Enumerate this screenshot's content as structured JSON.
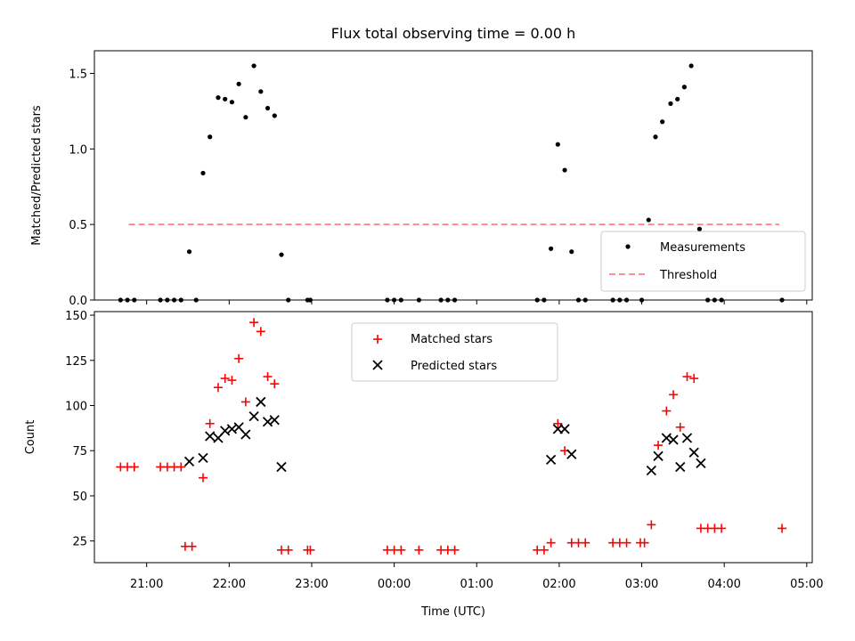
{
  "chart_data": [
    {
      "type": "scatter",
      "title": "Flux total observing time = 0.00 h",
      "ylabel": "Matched/Predicted stars",
      "xlabel": "",
      "x_axis": "time (UTC hours, continuing past midnight)",
      "xlim": [
        "20:22",
        "05:04"
      ],
      "ylim": [
        0,
        1.65
      ],
      "yticks": [
        0.0,
        0.5,
        1.0,
        1.5
      ],
      "ytick_labels": [
        "0.0",
        "0.5",
        "1.0",
        "1.5"
      ],
      "legend_position": "lower-right",
      "grid": false,
      "series": [
        {
          "name": "Measurements",
          "marker": "dot",
          "color": "#000000",
          "points": [
            [
              "20:41",
              0
            ],
            [
              "20:46",
              0
            ],
            [
              "20:51",
              0
            ],
            [
              "21:10",
              0
            ],
            [
              "21:15",
              0
            ],
            [
              "21:20",
              0
            ],
            [
              "21:25",
              0
            ],
            [
              "21:31",
              0.32
            ],
            [
              "21:36",
              0
            ],
            [
              "21:41",
              0.84
            ],
            [
              "21:46",
              1.08
            ],
            [
              "21:52",
              1.34
            ],
            [
              "21:57",
              1.33
            ],
            [
              "22:02",
              1.31
            ],
            [
              "22:07",
              1.43
            ],
            [
              "22:12",
              1.21
            ],
            [
              "22:18",
              1.55
            ],
            [
              "22:23",
              1.38
            ],
            [
              "22:28",
              1.27
            ],
            [
              "22:33",
              1.22
            ],
            [
              "22:38",
              0.3
            ],
            [
              "22:43",
              0
            ],
            [
              "22:57",
              0
            ],
            [
              "22:59",
              0
            ],
            [
              "23:55",
              0
            ],
            [
              "24:00",
              0
            ],
            [
              "24:05",
              0
            ],
            [
              "24:18",
              0
            ],
            [
              "24:34",
              0
            ],
            [
              "24:39",
              0
            ],
            [
              "24:44",
              0
            ],
            [
              "25:44",
              0
            ],
            [
              "25:49",
              0
            ],
            [
              "25:54",
              0.34
            ],
            [
              "25:59",
              1.03
            ],
            [
              "26:04",
              0.86
            ],
            [
              "26:09",
              0.32
            ],
            [
              "26:14",
              0
            ],
            [
              "26:19",
              0
            ],
            [
              "26:39",
              0
            ],
            [
              "26:44",
              0
            ],
            [
              "26:49",
              0
            ],
            [
              "27:00",
              0
            ],
            [
              "27:05",
              0.53
            ],
            [
              "27:10",
              1.08
            ],
            [
              "27:15",
              1.18
            ],
            [
              "27:21",
              1.3
            ],
            [
              "27:26",
              1.33
            ],
            [
              "27:31",
              1.41
            ],
            [
              "27:36",
              1.55
            ],
            [
              "27:42",
              0.47
            ],
            [
              "27:48",
              0
            ],
            [
              "27:53",
              0
            ],
            [
              "27:58",
              0
            ],
            [
              "28:42",
              0
            ]
          ]
        },
        {
          "name": "Threshold",
          "line_style": "dashed",
          "color": "#ff8080",
          "x": [
            "20:47",
            "28:40"
          ],
          "y": [
            0.5,
            0.5
          ]
        }
      ]
    },
    {
      "type": "scatter",
      "title": "",
      "ylabel": "Count",
      "xlabel": "Time (UTC)",
      "x_axis": "time (UTC hours, continuing past midnight)",
      "xlim": [
        "20:22",
        "05:04"
      ],
      "xtick_labels": [
        "21:00",
        "22:00",
        "23:00",
        "00:00",
        "01:00",
        "02:00",
        "03:00",
        "04:00",
        "05:00"
      ],
      "ylim": [
        13,
        152
      ],
      "yticks": [
        25,
        50,
        75,
        100,
        125,
        150
      ],
      "ytick_labels": [
        "25",
        "50",
        "75",
        "100",
        "125",
        "150"
      ],
      "legend_position": "top-center",
      "grid": false,
      "series": [
        {
          "name": "Matched stars",
          "marker": "plus",
          "color": "#ff0000",
          "points": [
            [
              "20:41",
              66
            ],
            [
              "20:46",
              66
            ],
            [
              "20:51",
              66
            ],
            [
              "21:10",
              66
            ],
            [
              "21:15",
              66
            ],
            [
              "21:20",
              66
            ],
            [
              "21:25",
              66
            ],
            [
              "21:28",
              22
            ],
            [
              "21:33",
              22
            ],
            [
              "21:41",
              60
            ],
            [
              "21:46",
              90
            ],
            [
              "21:52",
              110
            ],
            [
              "21:57",
              115
            ],
            [
              "22:02",
              114
            ],
            [
              "22:07",
              126
            ],
            [
              "22:12",
              102
            ],
            [
              "22:18",
              146
            ],
            [
              "22:23",
              141
            ],
            [
              "22:28",
              116
            ],
            [
              "22:33",
              112
            ],
            [
              "22:38",
              20
            ],
            [
              "22:43",
              20
            ],
            [
              "22:57",
              20
            ],
            [
              "22:59",
              20
            ],
            [
              "23:55",
              20
            ],
            [
              "24:00",
              20
            ],
            [
              "24:05",
              20
            ],
            [
              "24:18",
              20
            ],
            [
              "24:34",
              20
            ],
            [
              "24:39",
              20
            ],
            [
              "24:44",
              20
            ],
            [
              "25:44",
              20
            ],
            [
              "25:49",
              20
            ],
            [
              "25:54",
              24
            ],
            [
              "25:59",
              90
            ],
            [
              "26:04",
              75
            ],
            [
              "26:09",
              24
            ],
            [
              "26:14",
              24
            ],
            [
              "26:19",
              24
            ],
            [
              "26:39",
              24
            ],
            [
              "26:44",
              24
            ],
            [
              "26:49",
              24
            ],
            [
              "26:59",
              24
            ],
            [
              "27:02",
              24
            ],
            [
              "27:07",
              34
            ],
            [
              "27:12",
              78
            ],
            [
              "27:18",
              97
            ],
            [
              "27:23",
              106
            ],
            [
              "27:28",
              88
            ],
            [
              "27:33",
              116
            ],
            [
              "27:38",
              115
            ],
            [
              "27:43",
              32
            ],
            [
              "27:48",
              32
            ],
            [
              "27:53",
              32
            ],
            [
              "27:58",
              32
            ],
            [
              "28:42",
              32
            ]
          ]
        },
        {
          "name": "Predicted stars",
          "marker": "x",
          "color": "#000000",
          "points": [
            [
              "21:31",
              69
            ],
            [
              "21:41",
              71
            ],
            [
              "21:46",
              83
            ],
            [
              "21:52",
              82
            ],
            [
              "21:57",
              86
            ],
            [
              "22:02",
              87
            ],
            [
              "22:07",
              88
            ],
            [
              "22:12",
              84
            ],
            [
              "22:18",
              94
            ],
            [
              "22:23",
              102
            ],
            [
              "22:28",
              91
            ],
            [
              "22:33",
              92
            ],
            [
              "22:38",
              66
            ],
            [
              "25:54",
              70
            ],
            [
              "25:59",
              87
            ],
            [
              "26:04",
              87
            ],
            [
              "26:09",
              73
            ],
            [
              "27:07",
              64
            ],
            [
              "27:12",
              72
            ],
            [
              "27:18",
              82
            ],
            [
              "27:23",
              81
            ],
            [
              "27:28",
              66
            ],
            [
              "27:33",
              82
            ],
            [
              "27:38",
              74
            ],
            [
              "27:43",
              68
            ]
          ]
        }
      ]
    }
  ]
}
